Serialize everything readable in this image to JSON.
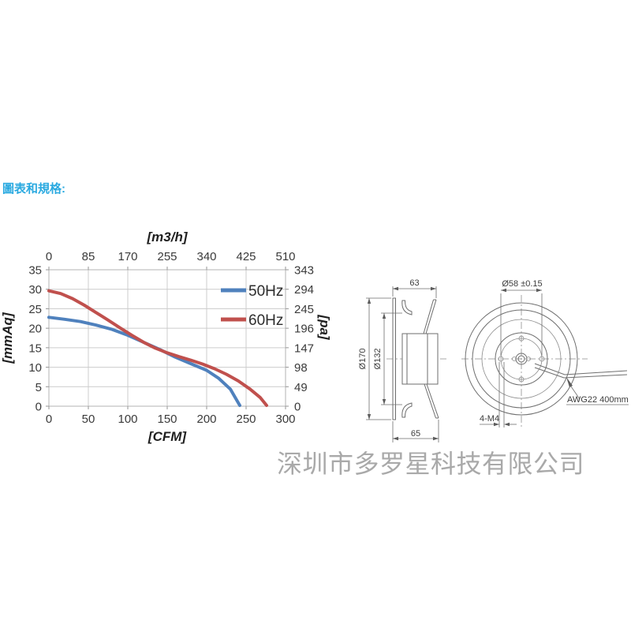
{
  "page": {
    "section_title": "圖表和規格:",
    "watermark": "深圳市多罗星科技有限公司"
  },
  "colors": {
    "accent": "#29a9e0",
    "watermark_gray": "#a9a9a9",
    "series_50hz_blue": "#4f81bd",
    "series_60hz_red": "#c0504d",
    "grid_gray": "#cccccc",
    "drawing_line_gray": "#6e6e6e"
  },
  "chart_data": {
    "type": "line",
    "title": "",
    "grid": true,
    "legend_position": "inside-top-right",
    "axes": {
      "bottom": {
        "label": "[CFM]",
        "range": [
          0,
          300
        ],
        "ticks": [
          0,
          50,
          100,
          150,
          200,
          250,
          300
        ]
      },
      "top": {
        "label": "[m3/h]",
        "range": [
          0,
          510
        ],
        "ticks": [
          0,
          85,
          170,
          255,
          340,
          425,
          510
        ]
      },
      "left": {
        "label": "[mmAq]",
        "range": [
          0,
          35
        ],
        "ticks": [
          0,
          5,
          10,
          15,
          20,
          25,
          30,
          35
        ]
      },
      "right": {
        "label": "[pa]",
        "range": [
          0,
          343
        ],
        "ticks": [
          0,
          49,
          98,
          147,
          196,
          245,
          294,
          343
        ]
      }
    },
    "series": [
      {
        "name": "50Hz",
        "color": "#4f81bd",
        "x": [
          0,
          20,
          40,
          60,
          80,
          100,
          120,
          140,
          160,
          180,
          200,
          215,
          230,
          242
        ],
        "y": [
          22.8,
          22.3,
          21.7,
          20.8,
          19.7,
          18.2,
          16.4,
          14.6,
          12.6,
          10.9,
          9.2,
          7.2,
          4.4,
          0.2
        ]
      },
      {
        "name": "60Hz",
        "color": "#c0504d",
        "x": [
          0,
          15,
          30,
          45,
          60,
          75,
          90,
          105,
          120,
          135,
          150,
          165,
          180,
          195,
          210,
          225,
          240,
          255,
          268,
          276
        ],
        "y": [
          29.6,
          28.9,
          27.6,
          25.9,
          24.0,
          22.1,
          20.1,
          18.2,
          16.4,
          14.9,
          13.7,
          12.7,
          11.8,
          10.8,
          9.6,
          8.2,
          6.5,
          4.4,
          2.2,
          0.2
        ]
      }
    ]
  },
  "drawings": {
    "side_view": {
      "width_top": "63",
      "width_bottom": "65",
      "outer_diameter": "Ø170",
      "inlet_diameter": "Ø132"
    },
    "front_view": {
      "bolt_circle": "Ø58 ±0.15",
      "mounting_holes": "4-M4",
      "lead_wire": "AWG22 400mm"
    }
  }
}
